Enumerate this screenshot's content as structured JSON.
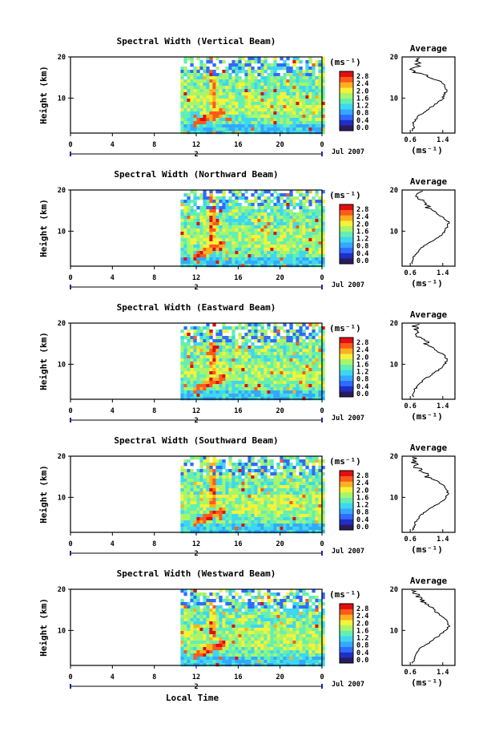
{
  "chart_data": [
    {
      "type": "heatmap",
      "title": "Spectral Width (Vertical Beam)",
      "xlabel": "",
      "ylabel": "Height (km)",
      "x_ticks": [
        "0",
        "4",
        "8",
        "12",
        "16",
        "20",
        "0"
      ],
      "y_ticks": [
        "20",
        "10"
      ],
      "xlim": [
        0,
        24
      ],
      "ylim": [
        1.5,
        20
      ],
      "data_start_x": 10.5,
      "date_marker": "2",
      "date_label": "Jul 2007",
      "colorbar": {
        "unit": "(ms⁻¹)",
        "ticks": [
          "2.8",
          "2.4",
          "2.0",
          "1.6",
          "1.2",
          "0.8",
          "0.4",
          "0.0"
        ]
      },
      "profile": {
        "title": "Average",
        "xlabel": "(ms⁻¹)",
        "x_ticks": [
          "0.6",
          "1.4"
        ],
        "y_ticks": [
          "20",
          "10"
        ],
        "xlim": [
          0.4,
          1.7
        ],
        "points": [
          [
            0.65,
            2
          ],
          [
            0.7,
            3
          ],
          [
            0.66,
            4
          ],
          [
            0.75,
            5
          ],
          [
            0.85,
            6
          ],
          [
            1.0,
            7
          ],
          [
            1.15,
            8
          ],
          [
            1.3,
            9
          ],
          [
            1.4,
            10
          ],
          [
            1.45,
            11
          ],
          [
            1.5,
            12
          ],
          [
            1.45,
            13
          ],
          [
            1.35,
            14
          ],
          [
            1.1,
            15
          ],
          [
            0.8,
            16
          ],
          [
            0.7,
            17
          ],
          [
            0.75,
            18
          ],
          [
            0.8,
            19
          ],
          [
            0.78,
            20
          ]
        ]
      }
    },
    {
      "type": "heatmap",
      "title": "Spectral Width (Northward Beam)",
      "xlabel": "",
      "ylabel": "Height (km)",
      "x_ticks": [
        "0",
        "4",
        "8",
        "12",
        "16",
        "20",
        "0"
      ],
      "y_ticks": [
        "20",
        "10"
      ],
      "xlim": [
        0,
        24
      ],
      "ylim": [
        1.5,
        20
      ],
      "data_start_x": 10.5,
      "date_marker": "2",
      "date_label": "Jul 2007",
      "colorbar": {
        "unit": "(ms⁻¹)",
        "ticks": [
          "2.8",
          "2.4",
          "2.0",
          "1.6",
          "1.2",
          "0.8",
          "0.4",
          "0.0"
        ]
      },
      "profile": {
        "title": "Average",
        "xlabel": "(ms⁻¹)",
        "x_ticks": [
          "0.6",
          "1.4"
        ],
        "y_ticks": [
          "20",
          "10"
        ],
        "xlim": [
          0.4,
          1.7
        ],
        "points": [
          [
            0.65,
            2
          ],
          [
            0.68,
            3
          ],
          [
            0.7,
            4
          ],
          [
            0.78,
            5
          ],
          [
            0.88,
            6
          ],
          [
            1.02,
            7
          ],
          [
            1.2,
            8
          ],
          [
            1.35,
            9
          ],
          [
            1.45,
            10
          ],
          [
            1.5,
            11
          ],
          [
            1.55,
            12
          ],
          [
            1.45,
            13
          ],
          [
            1.3,
            14
          ],
          [
            1.2,
            15
          ],
          [
            1.0,
            16
          ],
          [
            0.9,
            17
          ],
          [
            0.85,
            18
          ],
          [
            0.8,
            19
          ],
          [
            0.85,
            20
          ]
        ]
      }
    },
    {
      "type": "heatmap",
      "title": "Spectral Width (Eastward Beam)",
      "xlabel": "",
      "ylabel": "Height (km)",
      "x_ticks": [
        "0",
        "4",
        "8",
        "12",
        "16",
        "20",
        "0"
      ],
      "y_ticks": [
        "20",
        "10"
      ],
      "xlim": [
        0,
        24
      ],
      "ylim": [
        1.5,
        20
      ],
      "data_start_x": 10.5,
      "date_marker": "2",
      "date_label": "Jul 2007",
      "colorbar": {
        "unit": "(ms⁻¹)",
        "ticks": [
          "2.8",
          "2.4",
          "2.0",
          "1.6",
          "1.2",
          "0.8",
          "0.4",
          "0.0"
        ]
      },
      "profile": {
        "title": "Average",
        "xlabel": "(ms⁻¹)",
        "x_ticks": [
          "0.6",
          "1.4"
        ],
        "y_ticks": [
          "20",
          "10"
        ],
        "xlim": [
          0.4,
          1.7
        ],
        "points": [
          [
            0.65,
            2
          ],
          [
            0.68,
            3
          ],
          [
            0.72,
            4
          ],
          [
            0.8,
            5
          ],
          [
            0.9,
            6
          ],
          [
            1.05,
            7
          ],
          [
            1.2,
            8
          ],
          [
            1.35,
            9
          ],
          [
            1.45,
            10
          ],
          [
            1.5,
            11
          ],
          [
            1.45,
            12
          ],
          [
            1.3,
            13
          ],
          [
            1.15,
            14
          ],
          [
            1.0,
            15
          ],
          [
            0.9,
            16
          ],
          [
            0.8,
            17
          ],
          [
            0.75,
            18
          ],
          [
            0.7,
            19
          ],
          [
            0.78,
            20
          ]
        ]
      }
    },
    {
      "type": "heatmap",
      "title": "Spectral Width (Southward Beam)",
      "xlabel": "",
      "ylabel": "Height (km)",
      "x_ticks": [
        "0",
        "4",
        "8",
        "12",
        "16",
        "20",
        "0"
      ],
      "y_ticks": [
        "20",
        "10"
      ],
      "xlim": [
        0,
        24
      ],
      "ylim": [
        1.5,
        20
      ],
      "data_start_x": 10.5,
      "date_marker": "2",
      "date_label": "Jul 2007",
      "colorbar": {
        "unit": "(ms⁻¹)",
        "ticks": [
          "2.8",
          "2.4",
          "2.0",
          "1.6",
          "1.2",
          "0.8",
          "0.4",
          "0.0"
        ]
      },
      "profile": {
        "title": "Average",
        "xlabel": "(ms⁻¹)",
        "x_ticks": [
          "0.6",
          "1.4"
        ],
        "y_ticks": [
          "20",
          "10"
        ],
        "xlim": [
          0.4,
          1.7
        ],
        "points": [
          [
            0.65,
            2
          ],
          [
            0.7,
            3
          ],
          [
            0.72,
            4
          ],
          [
            0.8,
            5
          ],
          [
            0.9,
            6
          ],
          [
            1.05,
            7
          ],
          [
            1.22,
            8
          ],
          [
            1.38,
            9
          ],
          [
            1.48,
            10
          ],
          [
            1.52,
            11
          ],
          [
            1.5,
            12
          ],
          [
            1.4,
            13
          ],
          [
            1.25,
            14
          ],
          [
            1.05,
            15
          ],
          [
            0.9,
            16
          ],
          [
            0.8,
            17
          ],
          [
            0.75,
            18
          ],
          [
            0.7,
            19
          ],
          [
            0.75,
            20
          ]
        ]
      }
    },
    {
      "type": "heatmap",
      "title": "Spectral Width (Westward Beam)",
      "xlabel": "Local Time",
      "ylabel": "Height (km)",
      "x_ticks": [
        "0",
        "4",
        "8",
        "12",
        "16",
        "20",
        "0"
      ],
      "y_ticks": [
        "20",
        "10"
      ],
      "xlim": [
        0,
        24
      ],
      "ylim": [
        1.5,
        20
      ],
      "data_start_x": 10.5,
      "date_marker": "2",
      "date_label": "Jul 2007",
      "colorbar": {
        "unit": "(ms⁻¹)",
        "ticks": [
          "2.8",
          "2.4",
          "2.0",
          "1.6",
          "1.2",
          "0.8",
          "0.4",
          "0.0"
        ]
      },
      "profile": {
        "title": "Average",
        "xlabel": "(ms⁻¹)",
        "x_ticks": [
          "0.6",
          "1.4"
        ],
        "y_ticks": [
          "20",
          "10"
        ],
        "xlim": [
          0.4,
          1.7
        ],
        "points": [
          [
            0.65,
            2
          ],
          [
            0.7,
            3
          ],
          [
            0.72,
            4
          ],
          [
            0.78,
            5
          ],
          [
            0.9,
            6
          ],
          [
            1.05,
            7
          ],
          [
            1.2,
            8
          ],
          [
            1.35,
            9
          ],
          [
            1.45,
            10
          ],
          [
            1.55,
            11
          ],
          [
            1.52,
            12
          ],
          [
            1.45,
            13
          ],
          [
            1.3,
            14
          ],
          [
            1.15,
            15
          ],
          [
            1.0,
            16
          ],
          [
            0.9,
            17
          ],
          [
            0.8,
            18
          ],
          [
            0.75,
            19
          ],
          [
            0.7,
            20
          ]
        ]
      }
    }
  ],
  "colormap": [
    "#2a1a5e",
    "#1f2fc4",
    "#2f6bff",
    "#34a8ff",
    "#3fd6f0",
    "#63efb4",
    "#a9f56a",
    "#f4f23a",
    "#ffb020",
    "#ff5a1a",
    "#e01010"
  ]
}
